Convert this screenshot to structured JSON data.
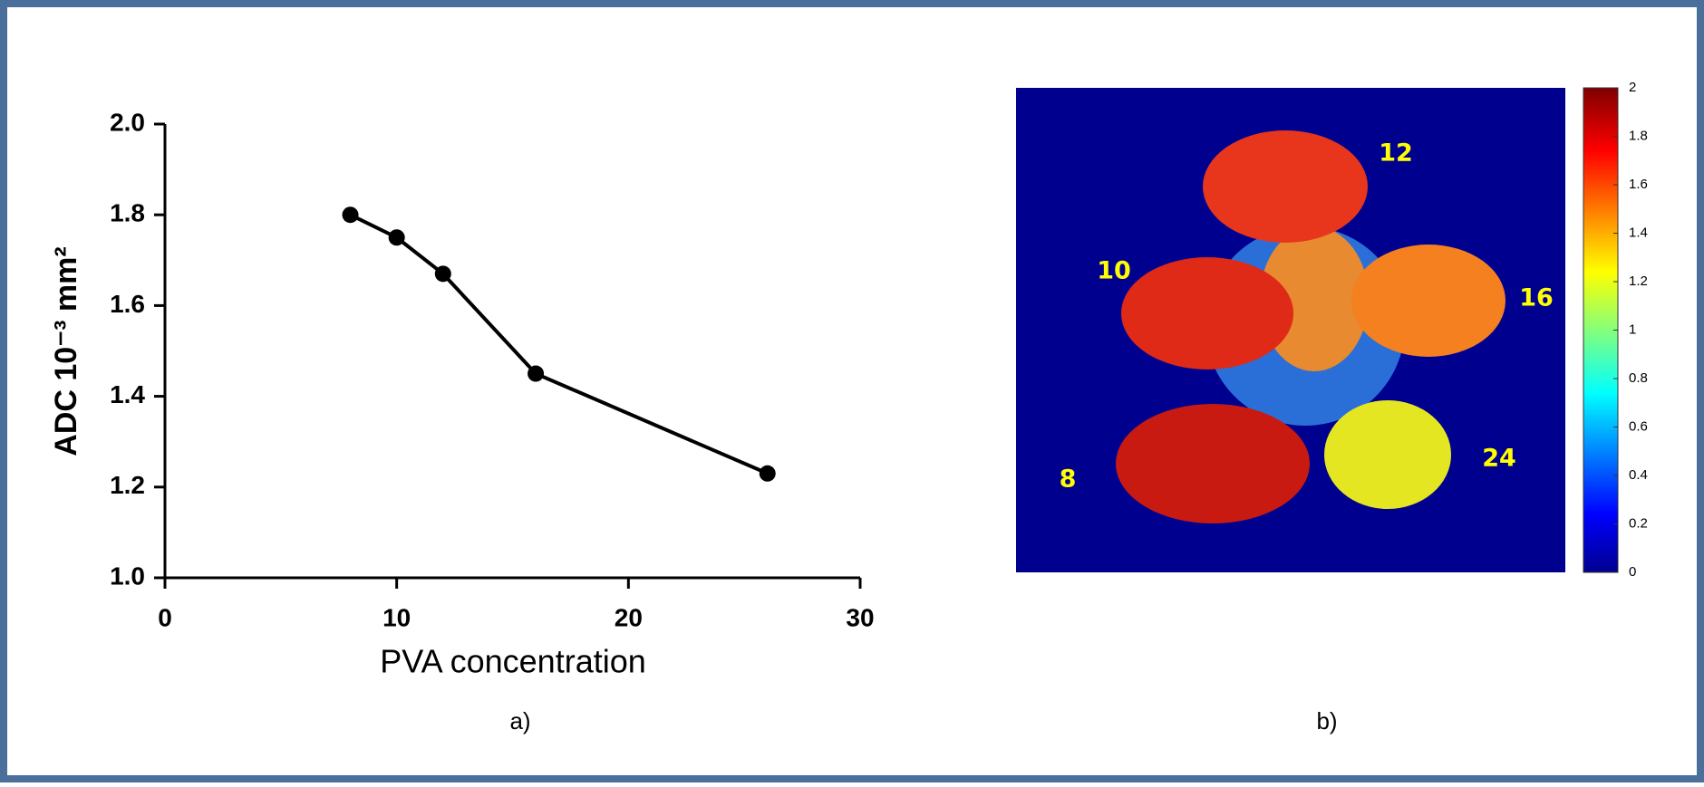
{
  "chart_data": [
    {
      "type": "line",
      "x_label": "PVA concentration",
      "y_label": "ADC 10⁻³ mm²",
      "caption": "a)",
      "x": [
        8,
        10,
        12,
        16,
        26
      ],
      "series": [
        {
          "color": "#000000",
          "values": [
            1.8,
            1.75,
            1.67,
            1.45,
            1.23
          ]
        }
      ],
      "xlim": [
        0,
        30
      ],
      "xticks": [
        0,
        10,
        20,
        30
      ],
      "ylim": [
        1.0,
        2.0
      ],
      "yticks": [
        {
          "value": 1.0,
          "label": "1.0"
        },
        1.2,
        1.4,
        1.6,
        1.8,
        {
          "value": 2.0,
          "label": "2.0"
        }
      ]
    },
    {
      "type": "image",
      "caption": "b)",
      "annotations": [
        12,
        10,
        16,
        8,
        24
      ],
      "colorbar_lim": [
        0,
        2
      ],
      "colorbar_ticks": [
        0,
        0.2,
        0.4,
        0.6,
        0.8,
        1,
        1.2,
        1.4,
        1.6,
        1.8,
        2
      ]
    }
  ]
}
